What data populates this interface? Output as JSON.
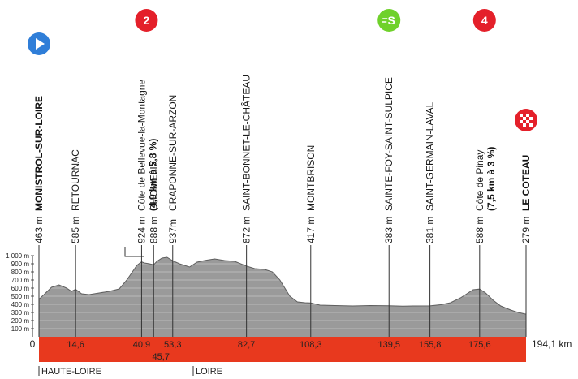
{
  "chart_data": {
    "type": "area",
    "subject": "stage-profile",
    "colors": {
      "profile_fill": "#9a9a9a",
      "profile_stroke": "#5e5e5e",
      "km_band": "#e8391e",
      "start_badge": "#2f7ed8",
      "sprint_badge": "#6fd12b",
      "climb_badge": "#e4202a",
      "finish_badge": "#e4202a"
    },
    "y_ticks": [
      "100 m",
      "200 m",
      "300 m",
      "400 m",
      "500 m",
      "600 m",
      "700 m",
      "800 m",
      "900 m",
      "1 000 m"
    ],
    "ylim": [
      0,
      1000
    ],
    "xlim": [
      0,
      194.1
    ],
    "x_zero_label": "0",
    "total_distance_label": "194,1 km",
    "profile": [
      {
        "x": 0,
        "y": 463
      },
      {
        "x": 2,
        "y": 520
      },
      {
        "x": 5,
        "y": 610
      },
      {
        "x": 8,
        "y": 640
      },
      {
        "x": 11,
        "y": 600
      },
      {
        "x": 13,
        "y": 560
      },
      {
        "x": 14.6,
        "y": 585
      },
      {
        "x": 17,
        "y": 530
      },
      {
        "x": 20,
        "y": 520
      },
      {
        "x": 24,
        "y": 540
      },
      {
        "x": 28,
        "y": 560
      },
      {
        "x": 32,
        "y": 590
      },
      {
        "x": 35,
        "y": 700
      },
      {
        "x": 37,
        "y": 790
      },
      {
        "x": 39,
        "y": 880
      },
      {
        "x": 40.9,
        "y": 924
      },
      {
        "x": 42,
        "y": 910
      },
      {
        "x": 44,
        "y": 900
      },
      {
        "x": 45.7,
        "y": 888
      },
      {
        "x": 47,
        "y": 930
      },
      {
        "x": 49,
        "y": 970
      },
      {
        "x": 51,
        "y": 980
      },
      {
        "x": 53.3,
        "y": 937
      },
      {
        "x": 56,
        "y": 900
      },
      {
        "x": 60,
        "y": 860
      },
      {
        "x": 63,
        "y": 920
      },
      {
        "x": 66,
        "y": 940
      },
      {
        "x": 70,
        "y": 960
      },
      {
        "x": 74,
        "y": 940
      },
      {
        "x": 78,
        "y": 930
      },
      {
        "x": 82.7,
        "y": 872
      },
      {
        "x": 86,
        "y": 840
      },
      {
        "x": 90,
        "y": 830
      },
      {
        "x": 93,
        "y": 800
      },
      {
        "x": 96,
        "y": 700
      },
      {
        "x": 98,
        "y": 600
      },
      {
        "x": 100,
        "y": 500
      },
      {
        "x": 103,
        "y": 430
      },
      {
        "x": 106,
        "y": 420
      },
      {
        "x": 108.3,
        "y": 417
      },
      {
        "x": 112,
        "y": 390
      },
      {
        "x": 118,
        "y": 385
      },
      {
        "x": 125,
        "y": 380
      },
      {
        "x": 132,
        "y": 385
      },
      {
        "x": 139.5,
        "y": 383
      },
      {
        "x": 145,
        "y": 378
      },
      {
        "x": 150,
        "y": 380
      },
      {
        "x": 155.8,
        "y": 381
      },
      {
        "x": 160,
        "y": 395
      },
      {
        "x": 164,
        "y": 420
      },
      {
        "x": 168,
        "y": 480
      },
      {
        "x": 171,
        "y": 540
      },
      {
        "x": 173,
        "y": 580
      },
      {
        "x": 175.6,
        "y": 588
      },
      {
        "x": 178,
        "y": 540
      },
      {
        "x": 181,
        "y": 450
      },
      {
        "x": 184,
        "y": 380
      },
      {
        "x": 188,
        "y": 330
      },
      {
        "x": 191,
        "y": 300
      },
      {
        "x": 194.1,
        "y": 279
      }
    ],
    "waypoints": [
      {
        "km": 0,
        "km_label": "",
        "alt": "463 m",
        "name": "MONISTROL-SUR-LOIRE",
        "bold": true,
        "badge": "start"
      },
      {
        "km": 14.6,
        "km_label": "14,6",
        "alt": "585 m",
        "name": "RETOURNAC",
        "bold": false,
        "badge": ""
      },
      {
        "km": 40.9,
        "km_label": "40,9",
        "alt": "924 m",
        "name": "Côte de Bellevue-la-Montagne",
        "name2": "(4,9 km à 5,8 %)",
        "bold": false,
        "badge": "climb",
        "badge_text": "2"
      },
      {
        "km": 45.7,
        "km_label": "45,7",
        "alt": "888 m",
        "name": "CHOMELIX",
        "bold": false,
        "badge": ""
      },
      {
        "km": 53.3,
        "km_label": "53,3",
        "alt": "937m",
        "name": "CRAPONNE-SUR-ARZON",
        "bold": false,
        "badge": ""
      },
      {
        "km": 82.7,
        "km_label": "82,7",
        "alt": "872 m",
        "name": "SAINT-BONNET-LE-CHÂTEAU",
        "bold": false,
        "badge": ""
      },
      {
        "km": 108.3,
        "km_label": "108,3",
        "alt": "417 m",
        "name": "MONTBRISON",
        "bold": false,
        "badge": ""
      },
      {
        "km": 139.5,
        "km_label": "139,5",
        "alt": "383 m",
        "name": "SAINTE-FOY-SAINT-SULPICE",
        "bold": false,
        "badge": "sprint"
      },
      {
        "km": 155.8,
        "km_label": "155,8",
        "alt": "381 m",
        "name": "SAINT-GERMAIN-LAVAL",
        "bold": false,
        "badge": ""
      },
      {
        "km": 175.6,
        "km_label": "175,6",
        "alt": "588 m",
        "name": "Côte de Pinay",
        "name2": "(7,5 km à 3 %)",
        "bold": false,
        "badge": "climb",
        "badge_text": "4"
      },
      {
        "km": 194.1,
        "km_label": "",
        "alt": "279 m",
        "name": "LE COTEAU",
        "bold": true,
        "badge": "finish"
      }
    ],
    "regions": [
      {
        "km": 0,
        "label": "HAUTE-LOIRE"
      },
      {
        "km": 65,
        "label": "LOIRE"
      }
    ]
  }
}
